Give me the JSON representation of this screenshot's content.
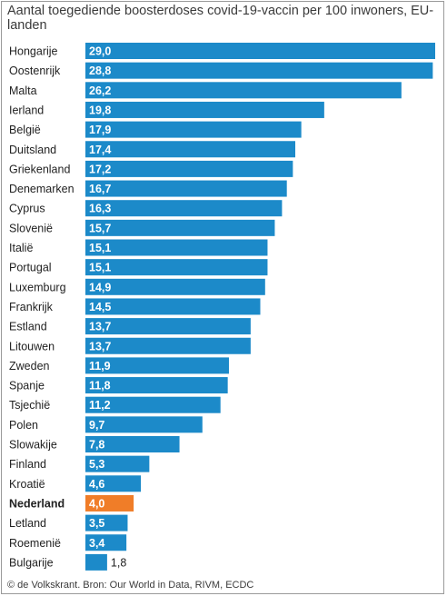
{
  "title": "Aantal toegediende boosterdoses covid-19-vaccin per 100 inwoners, EU-landen",
  "source": "© de Volkskrant. Bron: Our World in Data, RIVM, ECDC",
  "colors": {
    "bar": "#1c8ac9",
    "highlight": "#f07d28",
    "label_inside": "#ffffff",
    "label_outside": "#222222",
    "text": "#222222"
  },
  "chart_data": {
    "type": "bar",
    "orientation": "horizontal",
    "title": "Aantal toegediende boosterdoses covid-19-vaccin per 100 inwoners, EU-landen",
    "xlabel": "",
    "ylabel": "",
    "xlim": [
      0,
      29
    ],
    "grid": false,
    "highlight": "Nederland",
    "categories": [
      "Hongarije",
      "Oostenrijk",
      "Malta",
      "Ierland",
      "België",
      "Duitsland",
      "Griekenland",
      "Denemarken",
      "Cyprus",
      "Slovenië",
      "Italië",
      "Portugal",
      "Luxemburg",
      "Frankrijk",
      "Estland",
      "Litouwen",
      "Zweden",
      "Spanje",
      "Tsjechië",
      "Polen",
      "Slowakije",
      "Finland",
      "Kroatië",
      "Nederland",
      "Letland",
      "Roemenië",
      "Bulgarije"
    ],
    "values": [
      29.0,
      28.8,
      26.2,
      19.8,
      17.9,
      17.4,
      17.2,
      16.7,
      16.3,
      15.7,
      15.1,
      15.1,
      14.9,
      14.5,
      13.7,
      13.7,
      11.9,
      11.8,
      11.2,
      9.7,
      7.8,
      5.3,
      4.6,
      4.0,
      3.5,
      3.4,
      1.8
    ],
    "value_labels": [
      "29,0",
      "28,8",
      "26,2",
      "19,8",
      "17,9",
      "17,4",
      "17,2",
      "16,7",
      "16,3",
      "15,7",
      "15,1",
      "15,1",
      "14,9",
      "14,5",
      "13,7",
      "13,7",
      "11,9",
      "11,8",
      "11,2",
      "9,7",
      "7,8",
      "5,3",
      "4,6",
      "4,0",
      "3,5",
      "3,4",
      "1,8"
    ]
  }
}
